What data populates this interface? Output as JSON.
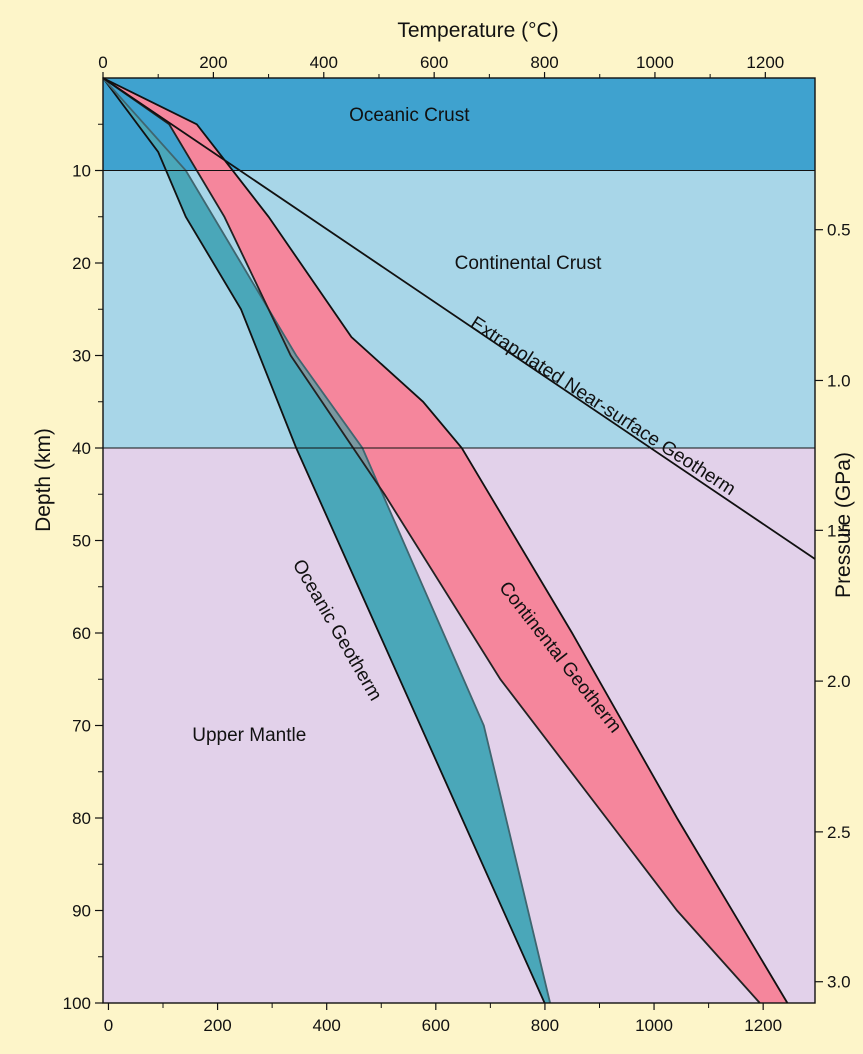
{
  "chart_data": {
    "type": "area",
    "title": "",
    "top_axis": {
      "label": "Temperature (°C)",
      "ticks": [
        "0",
        "200",
        "400",
        "600",
        "800",
        "1000",
        "1200"
      ],
      "range": [
        0,
        1290
      ]
    },
    "bottom_axis": {
      "ticks": [
        "0",
        "200",
        "400",
        "600",
        "800",
        "1000",
        "1200"
      ],
      "range": [
        -10,
        1295
      ]
    },
    "left_axis": {
      "label": "Depth (km)",
      "ticks": [
        "10",
        "20",
        "30",
        "40",
        "50",
        "60",
        "70",
        "80",
        "90",
        "100"
      ],
      "range": [
        0,
        100
      ],
      "inverted": true
    },
    "right_axis": {
      "label": "Pressure (GPa)",
      "ticks": [
        {
          "label": "0.5",
          "depth": 16.4
        },
        {
          "label": "1.0",
          "depth": 32.7
        },
        {
          "label": "1.5",
          "depth": 48.9
        },
        {
          "label": "2.0",
          "depth": 65.2
        },
        {
          "label": "2.5",
          "depth": 81.5
        },
        {
          "label": "3.0",
          "depth": 97.7
        }
      ]
    },
    "regions": [
      {
        "name": "Oceanic Crust",
        "depth": [
          0,
          10
        ],
        "color": "#3fa2cf"
      },
      {
        "name": "Continental Crust",
        "depth": [
          10,
          40
        ],
        "color": "#a8d6e8"
      },
      {
        "name": "Upper Mantle",
        "depth": [
          40,
          100
        ],
        "color": "#e2d1ea"
      }
    ],
    "bands": [
      {
        "name": "Oceanic Geotherm",
        "color": "#4aa7b9",
        "left": [
          [
            0,
            0
          ],
          [
            100,
            8
          ],
          [
            150,
            15
          ],
          [
            250,
            25
          ],
          [
            350,
            40
          ],
          [
            500,
            60
          ],
          [
            650,
            80
          ],
          [
            800,
            100
          ]
        ],
        "right": [
          [
            0,
            0
          ],
          [
            150,
            10
          ],
          [
            250,
            20
          ],
          [
            350,
            30
          ],
          [
            470,
            40
          ],
          [
            580,
            55
          ],
          [
            690,
            70
          ],
          [
            810,
            100
          ]
        ]
      },
      {
        "name": "Continental Geotherm",
        "color": "#f5869c",
        "left": [
          [
            0,
            0
          ],
          [
            120,
            5
          ],
          [
            220,
            15
          ],
          [
            340,
            30
          ],
          [
            510,
            45
          ],
          [
            720,
            65
          ],
          [
            1040,
            90
          ],
          [
            1190,
            100
          ]
        ],
        "right": [
          [
            0,
            0
          ],
          [
            170,
            5
          ],
          [
            300,
            15
          ],
          [
            450,
            28
          ],
          [
            580,
            35
          ],
          [
            650,
            40
          ],
          [
            700,
            45
          ],
          [
            850,
            60
          ],
          [
            1040,
            80
          ],
          [
            1240,
            100
          ]
        ]
      }
    ],
    "overlap_color": "#7a98a0",
    "line": {
      "name": "Extrapolated Near-surface Geotherm",
      "points": [
        [
          0,
          0
        ],
        [
          1290,
          52
        ]
      ]
    },
    "annotations": [
      {
        "text": "Oceanic Crust",
        "x": 555,
        "depth": 4
      },
      {
        "text": "Continental Crust",
        "x": 770,
        "depth": 20
      },
      {
        "text": "Upper Mantle",
        "x": 265,
        "depth": 71
      },
      {
        "text": "Oceanic Geotherm",
        "x": 415,
        "depth": 60,
        "rotation": 60
      },
      {
        "text": "Continental Geotherm",
        "x": 820,
        "depth": 63,
        "rotation": 52
      },
      {
        "text": "Extrapolated Near-surface Geotherm",
        "x": 900,
        "depth": 36,
        "rotation": 33
      }
    ]
  }
}
